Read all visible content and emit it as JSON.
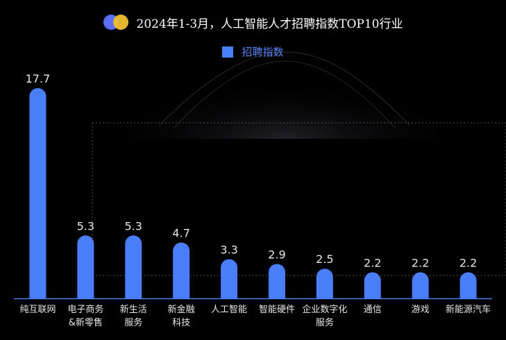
{
  "header": {
    "title": "2024年1-3月，人工智能人才招聘指数TOP10行业"
  },
  "legend": {
    "label": "招聘指数",
    "color": "#4a7df8"
  },
  "colors": {
    "bar": "#4a7df8",
    "background": "#000000",
    "axis": "#4a7df8"
  },
  "chart_data": {
    "type": "bar",
    "title": "2024年1-3月，人工智能人才招聘指数TOP10行业",
    "categories": [
      [
        "纯互联网"
      ],
      [
        "电子商务",
        "&新零售"
      ],
      [
        "新生活",
        "服务"
      ],
      [
        "新金融",
        "科技"
      ],
      [
        "人工智能"
      ],
      [
        "智能硬件"
      ],
      [
        "企业数字化",
        "服务"
      ],
      [
        "通信"
      ],
      [
        "游戏"
      ],
      [
        "新能源汽车"
      ]
    ],
    "series": [
      {
        "name": "招聘指数",
        "values": [
          17.7,
          5.3,
          5.3,
          4.7,
          3.3,
          2.9,
          2.5,
          2.2,
          2.2,
          2.2
        ]
      }
    ],
    "ylim": [
      0,
      17.7
    ],
    "grid": false,
    "legend_position": "top-center"
  }
}
